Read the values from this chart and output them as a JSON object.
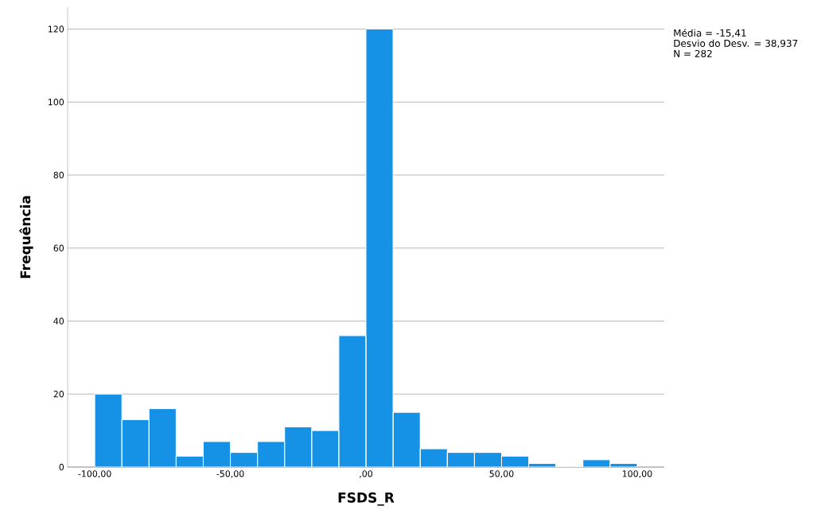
{
  "chart_data": {
    "type": "histogram",
    "xlabel": "FSDS_R",
    "ylabel": "Frequência",
    "bins": [
      -100,
      -90,
      -80,
      -70,
      -60,
      -50,
      -40,
      -30,
      -20,
      -10,
      0,
      10,
      20,
      30,
      40,
      50,
      60,
      70,
      80,
      90,
      100
    ],
    "values": [
      20,
      13,
      16,
      3,
      7,
      4,
      7,
      11,
      10,
      36,
      120,
      15,
      5,
      4,
      4,
      3,
      1,
      0,
      2,
      1
    ],
    "color": "#1591e6",
    "xlim": [
      -110,
      110
    ],
    "ylim": [
      0,
      126
    ],
    "xticks": [
      {
        "value": -100,
        "label": "-100,00"
      },
      {
        "value": -50,
        "label": "-50,00"
      },
      {
        "value": 0,
        "label": ",00"
      },
      {
        "value": 50,
        "label": "50,00"
      },
      {
        "value": 100,
        "label": "100,00"
      }
    ],
    "yticks": [
      0,
      20,
      40,
      60,
      80,
      100,
      120
    ],
    "grid": "y",
    "annotations": [
      "Média = -15,41",
      "Desvio do Desv. = 38,937",
      "N = 282"
    ]
  }
}
